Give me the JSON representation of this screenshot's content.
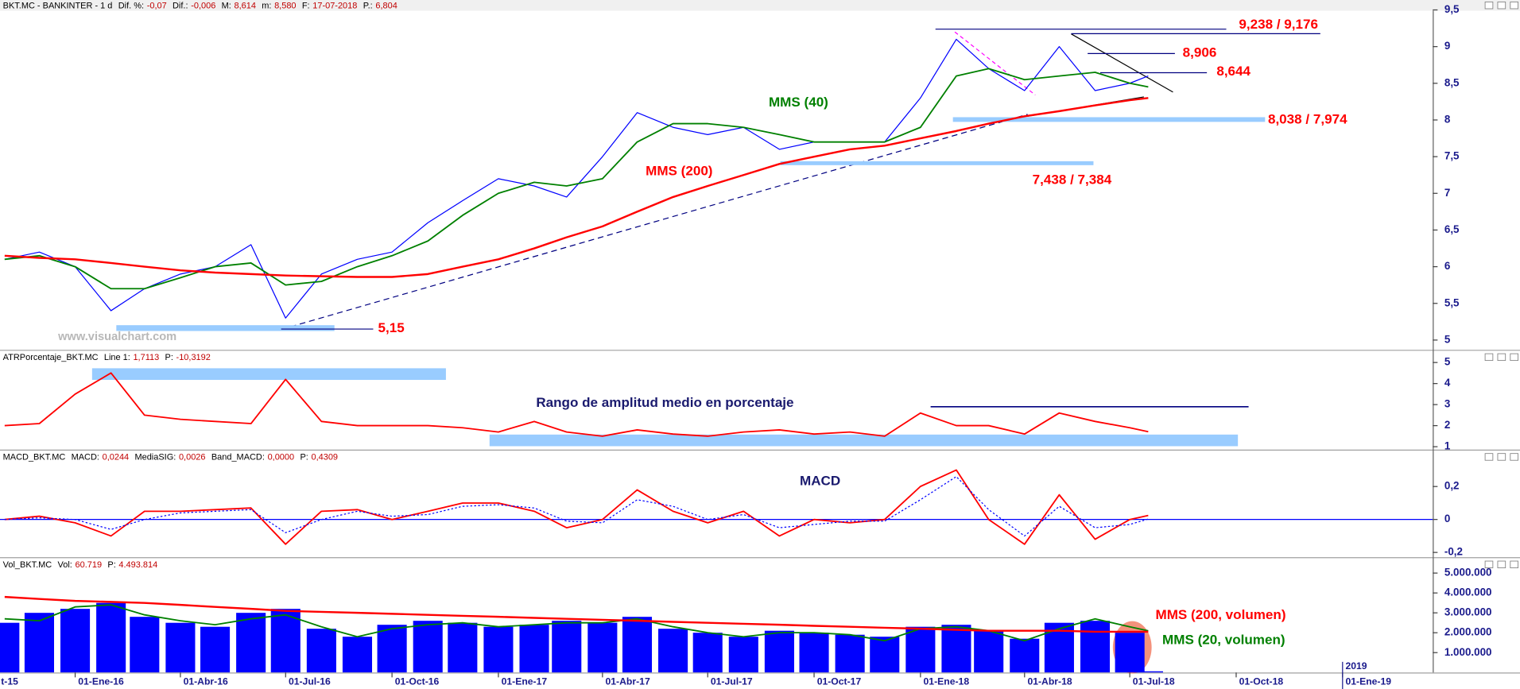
{
  "chart_data": [
    {
      "type": "line",
      "title": "BKT.MC - BANKINTER - 1 d",
      "readouts": [
        {
          "label": "Dif. %:",
          "value": "-0,07"
        },
        {
          "label": "Dif.:",
          "value": "-0,006"
        },
        {
          "label": "M:",
          "value": "8,614"
        },
        {
          "label": "m:",
          "value": "8,580"
        },
        {
          "label": "F:",
          "value": "17-07-2018"
        },
        {
          "label": "P.:",
          "value": "6,804"
        }
      ],
      "watermark": "www.visualchart.com",
      "x": [
        "2015-11-01",
        "2015-12-01",
        "2016-01-01",
        "2016-02-01",
        "2016-03-01",
        "2016-04-01",
        "2016-05-01",
        "2016-06-01",
        "2016-07-01",
        "2016-08-01",
        "2016-09-01",
        "2016-10-01",
        "2016-11-01",
        "2016-12-01",
        "2017-01-01",
        "2017-02-01",
        "2017-03-01",
        "2017-04-01",
        "2017-05-01",
        "2017-06-01",
        "2017-07-01",
        "2017-08-01",
        "2017-09-01",
        "2017-10-01",
        "2017-11-01",
        "2017-12-01",
        "2018-01-01",
        "2018-02-01",
        "2018-03-01",
        "2018-04-01",
        "2018-05-01",
        "2018-06-01",
        "2018-07-01",
        "2018-07-17"
      ],
      "series": [
        {
          "color": "#0000ff",
          "line_width": 1,
          "values": [
            6.1,
            6.2,
            6.0,
            5.4,
            5.7,
            5.9,
            6.0,
            6.3,
            5.3,
            5.9,
            6.1,
            6.2,
            6.6,
            6.9,
            7.2,
            7.1,
            6.95,
            7.5,
            8.1,
            7.9,
            7.8,
            7.9,
            7.6,
            7.7,
            7.7,
            7.7,
            8.3,
            9.1,
            8.7,
            8.4,
            9.0,
            8.4,
            8.5,
            8.6
          ]
        },
        {
          "label": "MMS (40)",
          "color": "#008000",
          "line_width": 1.5,
          "values": [
            6.1,
            6.15,
            6.0,
            5.7,
            5.7,
            5.85,
            6.0,
            6.05,
            5.75,
            5.8,
            6.0,
            6.15,
            6.35,
            6.7,
            7.0,
            7.15,
            7.1,
            7.2,
            7.7,
            7.95,
            7.95,
            7.9,
            7.8,
            7.7,
            7.7,
            7.7,
            7.9,
            8.6,
            8.7,
            8.55,
            8.6,
            8.65,
            8.5,
            8.45
          ]
        },
        {
          "label": "MMS (200)",
          "color": "#ff0000",
          "line_width": 2,
          "values": [
            6.15,
            6.12,
            6.1,
            6.05,
            6.0,
            5.95,
            5.92,
            5.9,
            5.88,
            5.87,
            5.86,
            5.86,
            5.9,
            6.0,
            6.1,
            6.25,
            6.4,
            6.55,
            6.75,
            6.95,
            7.1,
            7.25,
            7.4,
            7.5,
            7.6,
            7.65,
            7.75,
            7.85,
            7.95,
            8.05,
            8.12,
            8.2,
            8.27,
            8.3
          ]
        }
      ],
      "ylim": [
        4.88,
        9.49
      ],
      "yticks": [
        5,
        {
          "value": 5.5,
          "label": "5,5"
        },
        6,
        {
          "value": 6.5,
          "label": "6,5"
        },
        7,
        {
          "value": 7.5,
          "label": "7,5"
        },
        8,
        {
          "value": 8.5,
          "label": "8,5"
        },
        9,
        {
          "value": 9.5,
          "label": "9,5"
        }
      ],
      "levels": [
        {
          "label": "9,238 / 9,176",
          "values": [
            9.238,
            9.176
          ],
          "color": "#000080"
        },
        {
          "label": "8,906",
          "values": [
            8.906
          ],
          "color": "#000080"
        },
        {
          "label": "8,644",
          "values": [
            8.644
          ],
          "color": "#000080"
        },
        {
          "label": "8,038 / 7,974",
          "values": [
            8.038,
            7.974
          ],
          "color": "#99ccff"
        },
        {
          "label": "7,438 / 7,384",
          "values": [
            7.438,
            7.384
          ],
          "color": "#99ccff"
        },
        {
          "label": "5,15",
          "values": [
            5.15
          ],
          "color": "#99ccff"
        }
      ]
    },
    {
      "type": "line",
      "title": "ATRPorcentaje_BKT.MC",
      "readouts": [
        {
          "label": "Line 1:",
          "value": "1,7113"
        },
        {
          "label": "P:",
          "value": "-10,3192"
        }
      ],
      "annotation": "Rango de amplitud medio en porcentaje",
      "x": [
        "2015-11-01",
        "2015-12-01",
        "2016-01-01",
        "2016-02-01",
        "2016-03-01",
        "2016-04-01",
        "2016-05-01",
        "2016-06-01",
        "2016-07-01",
        "2016-08-01",
        "2016-09-01",
        "2016-10-01",
        "2016-11-01",
        "2016-12-01",
        "2017-01-01",
        "2017-02-01",
        "2017-03-01",
        "2017-04-01",
        "2017-05-01",
        "2017-06-01",
        "2017-07-01",
        "2017-08-01",
        "2017-09-01",
        "2017-10-01",
        "2017-11-01",
        "2017-12-01",
        "2018-01-01",
        "2018-02-01",
        "2018-03-01",
        "2018-04-01",
        "2018-05-01",
        "2018-06-01",
        "2018-07-01",
        "2018-07-17"
      ],
      "series": [
        {
          "color": "#ff0000",
          "line_width": 1.5,
          "values": [
            2.0,
            2.1,
            3.5,
            4.5,
            2.5,
            2.3,
            2.2,
            2.1,
            4.2,
            2.2,
            2.0,
            2.0,
            2.0,
            1.9,
            1.7,
            2.2,
            1.7,
            1.5,
            1.8,
            1.6,
            1.5,
            1.7,
            1.8,
            1.6,
            1.7,
            1.5,
            2.6,
            2.0,
            2.0,
            1.6,
            2.6,
            2.2,
            1.9,
            1.7113
          ]
        }
      ],
      "ylim": [
        0.86,
        5.51
      ],
      "yticks": [
        1,
        2,
        3,
        4,
        5
      ],
      "bands": [
        4.45,
        1.3
      ],
      "lines": [
        2.9
      ]
    },
    {
      "type": "line",
      "title": "MACD_BKT.MC",
      "readouts": [
        {
          "label": "MACD:",
          "value": "0,0244"
        },
        {
          "label": "MediaSIG:",
          "value": "0,0026"
        },
        {
          "label": "Band_MACD:",
          "value": "0,0000"
        },
        {
          "label": "P:",
          "value": "0,4309"
        }
      ],
      "annotation": "MACD",
      "x": [
        "2015-11-01",
        "2015-12-01",
        "2016-01-01",
        "2016-02-01",
        "2016-03-01",
        "2016-04-01",
        "2016-05-01",
        "2016-06-01",
        "2016-07-01",
        "2016-08-01",
        "2016-09-01",
        "2016-10-01",
        "2016-11-01",
        "2016-12-01",
        "2017-01-01",
        "2017-02-01",
        "2017-03-01",
        "2017-04-01",
        "2017-05-01",
        "2017-06-01",
        "2017-07-01",
        "2017-08-01",
        "2017-09-01",
        "2017-10-01",
        "2017-11-01",
        "2017-12-01",
        "2018-01-01",
        "2018-02-01",
        "2018-03-01",
        "2018-04-01",
        "2018-05-01",
        "2018-06-01",
        "2018-07-01",
        "2018-07-17"
      ],
      "series": [
        {
          "color": "#ff0000",
          "line_width": 1.5,
          "values": [
            0.0,
            0.02,
            -0.02,
            -0.1,
            0.05,
            0.05,
            0.06,
            0.07,
            -0.15,
            0.05,
            0.06,
            0.0,
            0.05,
            0.1,
            0.1,
            0.05,
            -0.05,
            0.0,
            0.18,
            0.05,
            -0.02,
            0.05,
            -0.1,
            0.0,
            -0.02,
            0.0,
            0.2,
            0.3,
            0.0,
            -0.15,
            0.15,
            -0.12,
            0.0,
            0.0244
          ]
        },
        {
          "color": "#0000ff",
          "line_width": 1,
          "dash": true,
          "values": [
            0.0,
            0.01,
            0.0,
            -0.06,
            0.0,
            0.04,
            0.05,
            0.06,
            -0.08,
            0.0,
            0.05,
            0.02,
            0.03,
            0.08,
            0.09,
            0.07,
            -0.01,
            -0.02,
            0.12,
            0.08,
            0.0,
            0.03,
            -0.05,
            -0.03,
            -0.01,
            -0.01,
            0.12,
            0.26,
            0.06,
            -0.1,
            0.08,
            -0.05,
            -0.03,
            0.0026
          ]
        }
      ],
      "ylim": [
        -0.229,
        0.412
      ],
      "yticks": [
        {
          "value": -0.2,
          "label": "-0,2"
        },
        0,
        {
          "value": 0.2,
          "label": "0,2"
        }
      ],
      "zero_line": true
    },
    {
      "type": "bar",
      "title": "Vol_BKT.MC",
      "readouts": [
        {
          "label": "Vol:",
          "value": "60.719"
        },
        {
          "label": "P:",
          "value": "4.493.814"
        }
      ],
      "x": [
        "2015-11-01",
        "2015-12-01",
        "2016-01-01",
        "2016-02-01",
        "2016-03-01",
        "2016-04-01",
        "2016-05-01",
        "2016-06-01",
        "2016-07-01",
        "2016-08-01",
        "2016-09-01",
        "2016-10-01",
        "2016-11-01",
        "2016-12-01",
        "2017-01-01",
        "2017-02-01",
        "2017-03-01",
        "2017-04-01",
        "2017-05-01",
        "2017-06-01",
        "2017-07-01",
        "2017-08-01",
        "2017-09-01",
        "2017-10-01",
        "2017-11-01",
        "2017-12-01",
        "2018-01-01",
        "2018-02-01",
        "2018-03-01",
        "2018-04-01",
        "2018-05-01",
        "2018-06-01",
        "2018-07-01",
        "2018-07-17"
      ],
      "series": [
        {
          "color": "#0000ff",
          "values": [
            2500000,
            3000000,
            3200000,
            3500000,
            2800000,
            2500000,
            2300000,
            3000000,
            3200000,
            2200000,
            1800000,
            2400000,
            2600000,
            2500000,
            2300000,
            2400000,
            2600000,
            2500000,
            2800000,
            2200000,
            2000000,
            1800000,
            2100000,
            2000000,
            1900000,
            1800000,
            2300000,
            2400000,
            2100000,
            1700000,
            2500000,
            2600000,
            2000000,
            60719
          ]
        },
        {
          "type": "line",
          "label": "MMS (20, volumen)",
          "color": "#008000",
          "line_width": 1.5,
          "values": [
            2700000,
            2600000,
            3300000,
            3400000,
            2900000,
            2600000,
            2400000,
            2700000,
            2900000,
            2300000,
            1800000,
            2200000,
            2400000,
            2500000,
            2300000,
            2400000,
            2500000,
            2500000,
            2700000,
            2300000,
            2000000,
            1800000,
            2000000,
            2000000,
            1900000,
            1600000,
            2200000,
            2300000,
            2100000,
            1600000,
            2200000,
            2700000,
            2300000,
            2100000
          ]
        },
        {
          "type": "line",
          "label": "MMS (200, volumen)",
          "color": "#ff0000",
          "line_width": 2,
          "values": [
            3800000,
            3700000,
            3600000,
            3550000,
            3500000,
            3400000,
            3300000,
            3200000,
            3100000,
            3050000,
            3000000,
            2950000,
            2900000,
            2850000,
            2800000,
            2750000,
            2700000,
            2650000,
            2600000,
            2550000,
            2500000,
            2450000,
            2400000,
            2350000,
            2300000,
            2250000,
            2200000,
            2150000,
            2100000,
            2100000,
            2100000,
            2050000,
            2050000,
            2050000
          ]
        }
      ],
      "ylim": [
        0,
        5700000
      ],
      "yticks": [
        {
          "value": 1000000,
          "label": "1.000.000"
        },
        {
          "value": 2000000,
          "label": "2.000.000"
        },
        {
          "value": 3000000,
          "label": "3.000.000"
        },
        {
          "value": 4000000,
          "label": "4.000.000"
        },
        {
          "value": 5000000,
          "label": "5.000.000"
        }
      ],
      "xlim": [
        "2015-10-28",
        "2019-03-20"
      ],
      "xticks": [
        {
          "value": "2015-10-01",
          "label": "t-15"
        },
        {
          "value": "2016-01-01",
          "label": "01-Ene-16"
        },
        {
          "value": "2016-04-01",
          "label": "01-Abr-16"
        },
        {
          "value": "2016-07-01",
          "label": "01-Jul-16"
        },
        {
          "value": "2016-10-01",
          "label": "01-Oct-16"
        },
        {
          "value": "2017-01-01",
          "label": "01-Ene-17"
        },
        {
          "value": "2017-04-01",
          "label": "01-Abr-17"
        },
        {
          "value": "2017-07-01",
          "label": "01-Jul-17"
        },
        {
          "value": "2017-10-01",
          "label": "01-Oct-17"
        },
        {
          "value": "2018-01-01",
          "label": "01-Ene-18"
        },
        {
          "value": "2018-04-01",
          "label": "01-Abr-18"
        },
        {
          "value": "2018-07-01",
          "label": "01-Jul-18"
        },
        {
          "value": "2018-10-01",
          "label": "01-Oct-18"
        },
        {
          "value": "2019-01-01",
          "label": "01-Ene-19"
        }
      ],
      "year_marks": [
        {
          "value": "2019-01-01",
          "label": "2019"
        }
      ]
    }
  ]
}
